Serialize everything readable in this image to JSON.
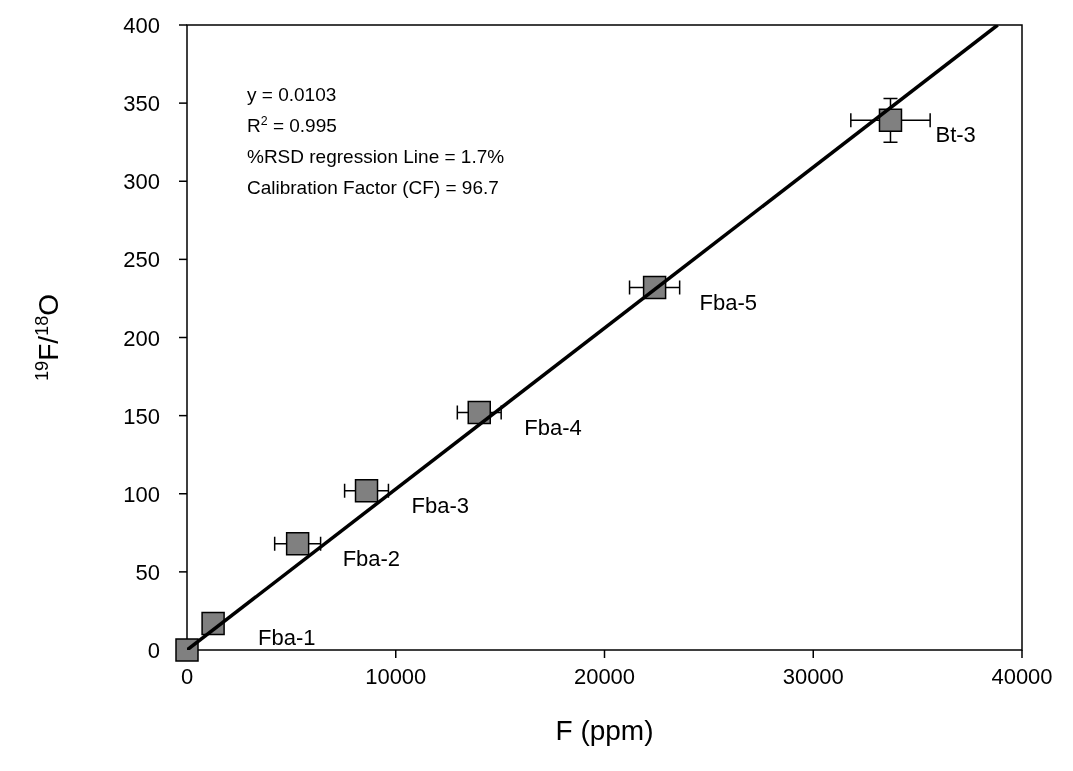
{
  "chart_data": {
    "type": "scatter",
    "xlabel": "F (ppm)",
    "ylabel": "$^{19}$F/$^{18}$O",
    "xlim": [
      0,
      40000
    ],
    "ylim": [
      0,
      400
    ],
    "xticks": [
      0,
      10000,
      20000,
      30000,
      40000
    ],
    "yticks": [
      0,
      50,
      100,
      150,
      200,
      250,
      300,
      350,
      400
    ],
    "grid": false,
    "series": [
      {
        "color": "#808080",
        "marker": "square",
        "x": [
          0,
          1250,
          5300,
          8600,
          14000,
          22400,
          33700
        ],
        "values": [
          0,
          17,
          68,
          102,
          152,
          232,
          339
        ],
        "xerrors": [
          null,
          null,
          1100,
          1050,
          1050,
          1200,
          1900
        ],
        "errors": [
          null,
          null,
          null,
          null,
          null,
          null,
          14
        ]
      },
      {
        "type": "line",
        "color": "#000000",
        "line_style": "solid",
        "x": [
          0,
          38835
        ],
        "values": [
          0,
          400
        ]
      }
    ],
    "annotations": [
      "y = 0.0103",
      "R$^{2}$ = 0.995",
      "%RSD regression Line = 1.7%",
      "Calibration Factor (CF) = 96.7",
      {
        "text": "Fba-1",
        "x": 1250,
        "y": 17
      },
      {
        "text": "Fba-2",
        "x": 5300,
        "y": 68
      },
      {
        "text": "Fba-3",
        "x": 8600,
        "y": 102
      },
      {
        "text": "Fba-4",
        "x": 14000,
        "y": 152
      },
      {
        "text": "Fba-5",
        "x": 22400,
        "y": 232
      },
      {
        "text": "Bt-3",
        "x": 33700,
        "y": 339
      }
    ]
  }
}
